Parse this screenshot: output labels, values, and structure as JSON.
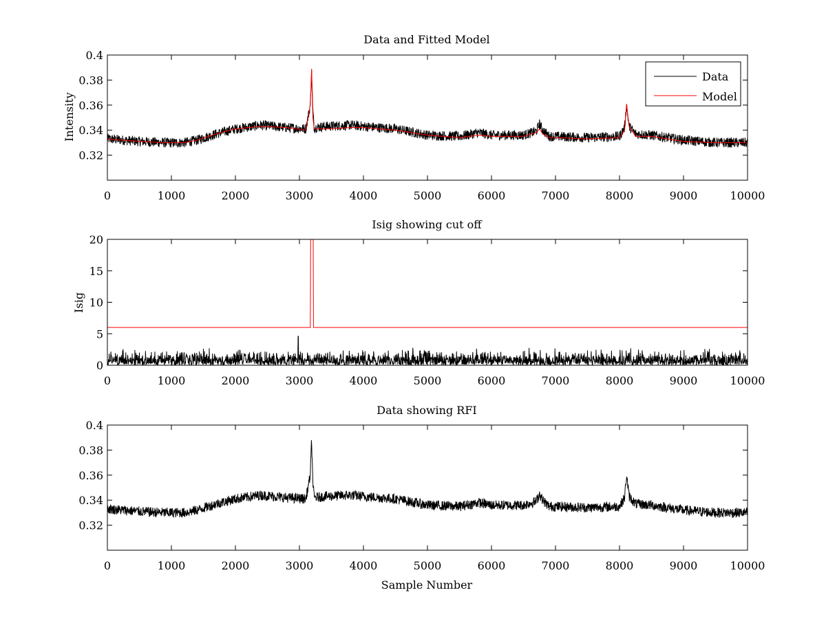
{
  "colors": {
    "data": "#000000",
    "model": "#ff0000",
    "axes": "#000000",
    "background": "#ffffff"
  },
  "chart_data": [
    {
      "type": "line",
      "title": "Data and Fitted Model",
      "xlabel": "",
      "ylabel": "Intensity",
      "xlim": [
        0,
        10000
      ],
      "ylim": [
        0.3,
        0.4
      ],
      "xticks": [
        0,
        1000,
        2000,
        3000,
        4000,
        5000,
        6000,
        7000,
        8000,
        9000,
        10000
      ],
      "xtick_labels": [
        "0",
        "1000",
        "2000",
        "3000",
        "4000",
        "5000",
        "6000",
        "7000",
        "8000",
        "9000",
        "10000"
      ],
      "yticks": [
        0.32,
        0.34,
        0.36,
        0.38,
        0.4
      ],
      "ytick_labels": [
        "0.32",
        "0.34",
        "0.36",
        "0.38",
        "0.4"
      ],
      "grid": false,
      "legend": "top-right",
      "legend_entries": [
        "Data",
        "Model"
      ],
      "series": [
        {
          "name": "Data",
          "kind": "noisy",
          "noise_amplitude": 0.004,
          "x": [
            0,
            500,
            900,
            1200,
            1400,
            1700,
            2000,
            2400,
            2800,
            3100,
            3170,
            3190,
            3210,
            3230,
            3400,
            3800,
            4000,
            4500,
            5000,
            5500,
            5800,
            6000,
            6500,
            6700,
            6750,
            6800,
            6900,
            7000,
            7500,
            8000,
            8080,
            8110,
            8150,
            8250,
            8500,
            9000,
            9500,
            10000
          ],
          "y": [
            0.333,
            0.331,
            0.33,
            0.33,
            0.332,
            0.337,
            0.341,
            0.344,
            0.342,
            0.341,
            0.36,
            0.388,
            0.355,
            0.342,
            0.343,
            0.344,
            0.343,
            0.341,
            0.336,
            0.335,
            0.338,
            0.336,
            0.336,
            0.339,
            0.345,
            0.34,
            0.335,
            0.335,
            0.334,
            0.335,
            0.342,
            0.36,
            0.343,
            0.337,
            0.336,
            0.332,
            0.33,
            0.33
          ]
        },
        {
          "name": "Model",
          "kind": "smooth",
          "x": [
            0,
            500,
            900,
            1200,
            1400,
            1700,
            2000,
            2400,
            2800,
            3100,
            3170,
            3190,
            3210,
            3230,
            3400,
            3800,
            4000,
            4500,
            5000,
            5500,
            5800,
            6000,
            6500,
            6700,
            6750,
            6800,
            6900,
            7000,
            7500,
            8000,
            8080,
            8110,
            8150,
            8250,
            8500,
            9000,
            9500,
            10000
          ],
          "y": [
            0.333,
            0.331,
            0.33,
            0.33,
            0.332,
            0.337,
            0.341,
            0.343,
            0.342,
            0.34,
            0.36,
            0.389,
            0.35,
            0.341,
            0.341,
            0.342,
            0.342,
            0.34,
            0.336,
            0.334,
            0.336,
            0.335,
            0.335,
            0.338,
            0.341,
            0.337,
            0.334,
            0.334,
            0.333,
            0.334,
            0.34,
            0.361,
            0.343,
            0.335,
            0.335,
            0.331,
            0.33,
            0.33
          ]
        }
      ]
    },
    {
      "type": "line",
      "title": "Isig showing cut off",
      "xlabel": "",
      "ylabel": "Isig",
      "xlim": [
        0,
        10000
      ],
      "ylim": [
        0,
        20
      ],
      "xticks": [
        0,
        1000,
        2000,
        3000,
        4000,
        5000,
        6000,
        7000,
        8000,
        9000,
        10000
      ],
      "xtick_labels": [
        "0",
        "1000",
        "2000",
        "3000",
        "4000",
        "5000",
        "6000",
        "7000",
        "8000",
        "9000",
        "10000"
      ],
      "yticks": [
        0,
        5,
        10,
        15,
        20
      ],
      "ytick_labels": [
        "0",
        "5",
        "10",
        "15",
        "20"
      ],
      "grid": false,
      "series": [
        {
          "name": "Isig",
          "kind": "abs-noise",
          "noise_amplitude": 1.0,
          "spike_at": 2980,
          "spike_value": 4.6
        },
        {
          "name": "Cut off",
          "kind": "step",
          "x": [
            0,
            3170,
            3175,
            3215,
            3220,
            10000
          ],
          "y": [
            6,
            6,
            20,
            20,
            6,
            6
          ]
        }
      ]
    },
    {
      "type": "line",
      "title": "Data showing RFI",
      "xlabel": "Sample Number",
      "ylabel": "",
      "xlim": [
        0,
        10000
      ],
      "ylim": [
        0.3,
        0.4
      ],
      "xticks": [
        0,
        1000,
        2000,
        3000,
        4000,
        5000,
        6000,
        7000,
        8000,
        9000,
        10000
      ],
      "xtick_labels": [
        "0",
        "1000",
        "2000",
        "3000",
        "4000",
        "5000",
        "6000",
        "7000",
        "8000",
        "9000",
        "10000"
      ],
      "yticks": [
        0.32,
        0.34,
        0.36,
        0.38,
        0.4
      ],
      "ytick_labels": [
        "0.32",
        "0.34",
        "0.36",
        "0.38",
        "0.4"
      ],
      "grid": false,
      "series": [
        {
          "name": "Data",
          "kind": "noisy",
          "noise_amplitude": 0.004,
          "x": [
            0,
            500,
            900,
            1200,
            1400,
            1700,
            2000,
            2400,
            2800,
            3100,
            3170,
            3190,
            3210,
            3230,
            3400,
            3800,
            4000,
            4500,
            5000,
            5500,
            5800,
            6000,
            6500,
            6700,
            6750,
            6800,
            6900,
            7000,
            7500,
            8000,
            8080,
            8110,
            8150,
            8250,
            8500,
            9000,
            9500,
            10000
          ],
          "y": [
            0.333,
            0.331,
            0.33,
            0.33,
            0.332,
            0.337,
            0.341,
            0.344,
            0.342,
            0.341,
            0.36,
            0.388,
            0.355,
            0.342,
            0.343,
            0.344,
            0.343,
            0.341,
            0.336,
            0.335,
            0.338,
            0.336,
            0.336,
            0.339,
            0.345,
            0.34,
            0.335,
            0.335,
            0.334,
            0.335,
            0.342,
            0.36,
            0.343,
            0.337,
            0.336,
            0.332,
            0.33,
            0.33
          ]
        }
      ]
    }
  ]
}
